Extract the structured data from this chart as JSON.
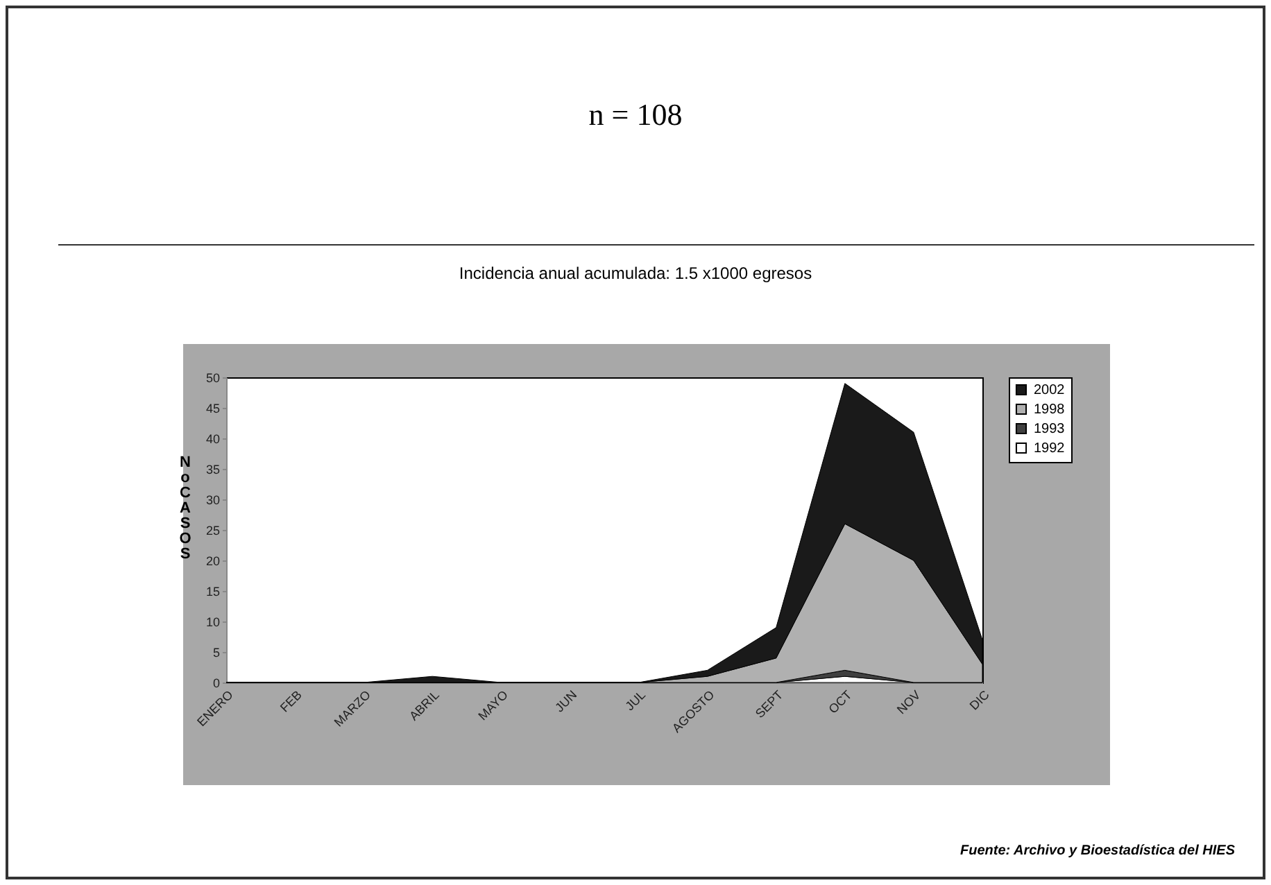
{
  "chart_data": {
    "type": "area",
    "stacked": true,
    "title": "n = 108",
    "subtitle": "Incidencia anual acumulada: 1.5 x1000 egresos",
    "ylabel": "No CASOS",
    "categories": [
      "ENERO",
      "FEB",
      "MARZO",
      "ABRIL",
      "MAYO",
      "JUN",
      "JUL",
      "AGOSTO",
      "SEPT",
      "OCT",
      "NOV",
      "DIC"
    ],
    "series": [
      {
        "name": "1992",
        "color": "#ffffff",
        "values": [
          0,
          0,
          0,
          0,
          0,
          0,
          0,
          0,
          0,
          1,
          0,
          0
        ]
      },
      {
        "name": "1993",
        "color": "#404040",
        "values": [
          0,
          0,
          0,
          0,
          0,
          0,
          0,
          0,
          0,
          1,
          0,
          0
        ]
      },
      {
        "name": "1998",
        "color": "#b0b0b0",
        "values": [
          0,
          0,
          0,
          0,
          0,
          0,
          0,
          1,
          4,
          24,
          20,
          3
        ]
      },
      {
        "name": "2002",
        "color": "#1a1a1a",
        "values": [
          0,
          0,
          0,
          1,
          0,
          0,
          0,
          1,
          5,
          23,
          21,
          4
        ]
      }
    ],
    "ylim": [
      0,
      50
    ],
    "yticks": [
      0,
      5,
      10,
      15,
      20,
      25,
      30,
      35,
      40,
      45,
      50
    ],
    "grid": false,
    "legend": "right",
    "annotations": [
      "Fuente: Archivo y Bioestadística del HIES"
    ]
  }
}
